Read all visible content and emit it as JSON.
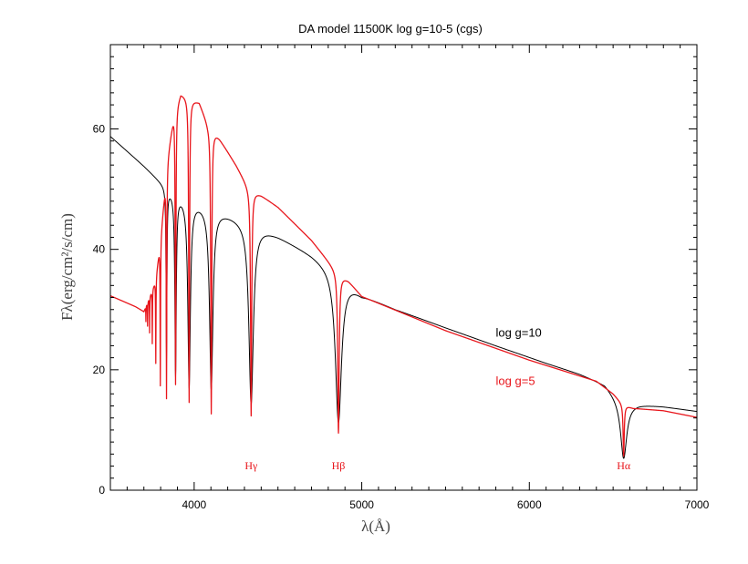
{
  "chart_data": {
    "type": "line",
    "title": "DA model 11500K log g=10-5 (cgs)",
    "xlabel": "λ(Å)",
    "ylabel": "Fλ(erg/cm²/s/cm)",
    "xlim": [
      3500,
      7000
    ],
    "ylim": [
      0,
      74
    ],
    "xticks": [
      4000,
      5000,
      6000,
      7000
    ],
    "yticks": [
      0,
      20,
      40,
      60
    ],
    "grid": false,
    "series": [
      {
        "name": "log g=10",
        "color": "#000000",
        "continuum": [
          [
            3500,
            58.8
          ],
          [
            3700,
            53.9
          ],
          [
            3850,
            50.0
          ],
          [
            3950,
            48.6
          ],
          [
            4100,
            47.0
          ],
          [
            4350,
            44.3
          ],
          [
            4500,
            42.3
          ],
          [
            4700,
            39.2
          ],
          [
            4860,
            36.3
          ],
          [
            5000,
            32.6
          ],
          [
            5200,
            30.1
          ],
          [
            5500,
            27.0
          ],
          [
            5800,
            24.0
          ],
          [
            6100,
            21.1
          ],
          [
            6300,
            19.3
          ],
          [
            6450,
            17.6
          ],
          [
            6560,
            14.3
          ],
          [
            6650,
            14.3
          ],
          [
            6800,
            13.9
          ],
          [
            7000,
            13.1
          ]
        ],
        "lines": [
          {
            "c": 6563,
            "d": 9.0,
            "w": 22
          },
          {
            "c": 4861,
            "d": 25.0,
            "w": 22
          },
          {
            "c": 4340,
            "d": 30.0,
            "w": 16
          },
          {
            "c": 4102,
            "d": 30.0,
            "w": 12
          },
          {
            "c": 3970,
            "d": 31.0,
            "w": 9
          },
          {
            "c": 3889,
            "d": 30.0,
            "w": 5
          },
          {
            "c": 3835,
            "d": 28.0,
            "w": 3
          }
        ]
      },
      {
        "name": "log g=5",
        "color": "#e8151b",
        "continuum": [
          [
            3500,
            32.3
          ],
          [
            3650,
            30.5
          ],
          [
            3700,
            29.7
          ],
          [
            3770,
            35.0
          ],
          [
            3800,
            42.0
          ],
          [
            3840,
            55.0
          ],
          [
            3880,
            63.0
          ],
          [
            3920,
            66.0
          ],
          [
            3980,
            65.0
          ],
          [
            4030,
            64.5
          ],
          [
            4080,
            61.0
          ],
          [
            4150,
            58.5
          ],
          [
            4250,
            54.0
          ],
          [
            4330,
            50.0
          ],
          [
            4400,
            49.0
          ],
          [
            4500,
            47.0
          ],
          [
            4700,
            41.5
          ],
          [
            4860,
            36.0
          ],
          [
            4920,
            34.8
          ],
          [
            5000,
            32.2
          ],
          [
            5500,
            26.5
          ],
          [
            6000,
            21.6
          ],
          [
            6400,
            18.1
          ],
          [
            6500,
            16.0
          ],
          [
            6560,
            14.2
          ],
          [
            6620,
            13.6
          ],
          [
            6800,
            13.2
          ],
          [
            7000,
            12.1
          ]
        ],
        "lines": [
          {
            "c": 6563,
            "d": 8.5,
            "w": 4
          },
          {
            "c": 4861,
            "d": 26.5,
            "w": 5
          },
          {
            "c": 4340,
            "d": 37.5,
            "w": 4
          },
          {
            "c": 4102,
            "d": 47.5,
            "w": 3.5
          },
          {
            "c": 3970,
            "d": 50.5,
            "w": 3
          },
          {
            "c": 3889,
            "d": 46.0,
            "w": 2.5
          },
          {
            "c": 3835,
            "d": 38.0,
            "w": 2
          },
          {
            "c": 3798,
            "d": 24.0,
            "w": 1.5
          },
          {
            "c": 3771,
            "d": 14.0,
            "w": 1.3
          },
          {
            "c": 3750,
            "d": 9.0,
            "w": 1.2
          },
          {
            "c": 3734,
            "d": 6.0,
            "w": 1.0
          },
          {
            "c": 3722,
            "d": 4.0,
            "w": 1.0
          },
          {
            "c": 3712,
            "d": 2.5,
            "w": 0.8
          }
        ]
      }
    ],
    "annotations": [
      {
        "text": "Hγ",
        "x": 4340,
        "y": 3.5,
        "color": "#e8151b"
      },
      {
        "text": "Hβ",
        "x": 4861,
        "y": 3.5,
        "color": "#e8151b"
      },
      {
        "text": "Hα",
        "x": 6563,
        "y": 3.5,
        "color": "#e8151b"
      },
      {
        "text": "log g=10",
        "x": 5800,
        "y": 25.5,
        "color": "#000000"
      },
      {
        "text": "log g=5",
        "x": 5800,
        "y": 17.5,
        "color": "#e8151b"
      }
    ]
  }
}
